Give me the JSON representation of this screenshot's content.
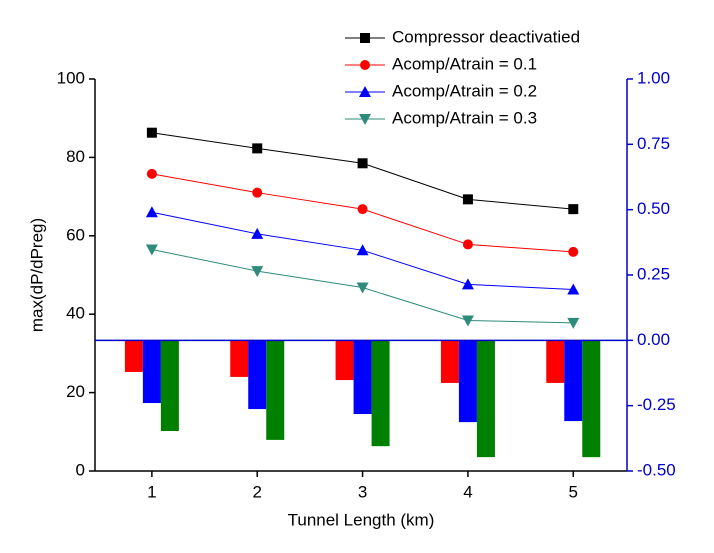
{
  "chart_data": {
    "type": "line",
    "xlabel": "Tunnel Length (km)",
    "ylabel": "max(dP/dPreg)",
    "x": [
      1,
      2,
      3,
      4,
      5
    ],
    "xlim": [
      0.46,
      5.51
    ],
    "xticks": [
      1,
      2,
      3,
      4,
      5
    ],
    "ylim": [
      0,
      100
    ],
    "yticks": [
      0,
      20,
      40,
      60,
      80,
      100
    ],
    "y2lim": [
      -0.5,
      1.0
    ],
    "y2ticks": [
      {
        "value": -0.5,
        "label": "-0.50"
      },
      -0.25,
      {
        "value": 0,
        "label": "0.00"
      },
      0.25,
      {
        "value": 0.5,
        "label": "0.50"
      },
      0.75,
      {
        "value": 1,
        "label": "1.00"
      }
    ],
    "y2color": "#0000cc",
    "series": [
      {
        "name": "Compressor deactivatied",
        "color": "#000000",
        "marker": "square",
        "values": [
          86.3,
          82.3,
          78.5,
          69.3,
          66.8
        ]
      },
      {
        "name": "Acomp/Atrain = 0.1",
        "color": "#ff0000",
        "marker": "circle",
        "values": [
          75.8,
          71.0,
          66.8,
          57.8,
          55.9
        ]
      },
      {
        "name": "Acomp/Atrain = 0.2",
        "color": "#0000ff",
        "marker": "triangle-up",
        "values": [
          66.0,
          60.5,
          56.3,
          47.6,
          46.3
        ]
      },
      {
        "name": "Acomp/Atrain = 0.3",
        "color": "#2e8b7a",
        "marker": "triangle-down",
        "values": [
          56.5,
          51.0,
          46.8,
          38.4,
          37.8
        ]
      },
      {
        "type": "bar",
        "axis": "y2",
        "color": "#ff0000",
        "values": [
          -0.121,
          -0.14,
          -0.152,
          -0.163,
          -0.163
        ]
      },
      {
        "type": "bar",
        "axis": "y2",
        "color": "#0000ff",
        "values": [
          -0.24,
          -0.263,
          -0.282,
          -0.313,
          -0.309
        ]
      },
      {
        "type": "bar",
        "axis": "y2",
        "color": "#008000",
        "values": [
          -0.347,
          -0.381,
          -0.405,
          -0.447,
          -0.447
        ]
      }
    ]
  }
}
